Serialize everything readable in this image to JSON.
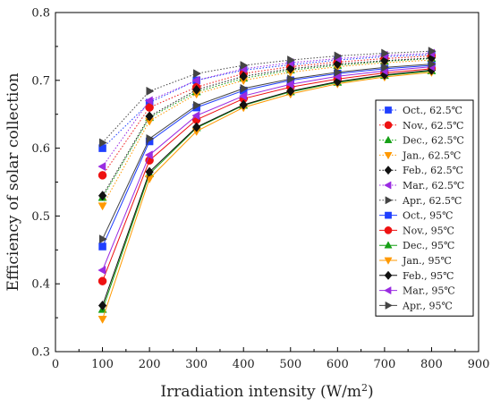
{
  "chart_data": {
    "type": "line",
    "xlabel": "Irradiation intensity (W/m",
    "xlabel_sup": "2",
    "xlabel_end": ")",
    "ylabel": "Efficiency of solar collection",
    "xlim": [
      0,
      900
    ],
    "ylim": [
      0.3,
      0.8
    ],
    "xticks": [
      "0",
      "100",
      "200",
      "300",
      "400",
      "500",
      "600",
      "700",
      "800",
      "900"
    ],
    "yticks": [
      "0.3",
      "0.4",
      "0.5",
      "0.6",
      "0.7",
      "0.8"
    ],
    "x": [
      100,
      200,
      300,
      400,
      500,
      600,
      700,
      800
    ],
    "legend_position": "right",
    "series": [
      {
        "name": "Oct., 62.5℃",
        "color": "#1f3fff",
        "marker": "square",
        "dashed": true,
        "values": [
          0.6,
          0.667,
          0.7,
          0.715,
          0.723,
          0.73,
          0.735,
          0.738
        ]
      },
      {
        "name": "Nov., 62.5℃",
        "color": "#ee1111",
        "marker": "circle",
        "dashed": true,
        "values": [
          0.56,
          0.66,
          0.69,
          0.71,
          0.72,
          0.727,
          0.732,
          0.736
        ]
      },
      {
        "name": "Dec., 62.5℃",
        "color": "#16a016",
        "marker": "triangle-up",
        "dashed": true,
        "values": [
          0.527,
          0.645,
          0.683,
          0.703,
          0.715,
          0.722,
          0.728,
          0.732
        ]
      },
      {
        "name": "Jan., 62.5℃",
        "color": "#ff9900",
        "marker": "triangle-down",
        "dashed": true,
        "values": [
          0.515,
          0.64,
          0.68,
          0.7,
          0.712,
          0.72,
          0.726,
          0.73
        ]
      },
      {
        "name": "Feb., 62.5℃",
        "color": "#111111",
        "marker": "diamond",
        "dashed": true,
        "values": [
          0.53,
          0.647,
          0.686,
          0.706,
          0.717,
          0.724,
          0.729,
          0.733
        ]
      },
      {
        "name": "Mar., 62.5℃",
        "color": "#9a2be2",
        "marker": "triangle-left",
        "dashed": true,
        "values": [
          0.573,
          0.67,
          0.7,
          0.717,
          0.726,
          0.732,
          0.737,
          0.74
        ]
      },
      {
        "name": "Apr., 62.5℃",
        "color": "#444444",
        "marker": "triangle-right",
        "dashed": true,
        "values": [
          0.608,
          0.684,
          0.71,
          0.722,
          0.73,
          0.736,
          0.74,
          0.743
        ]
      },
      {
        "name": "Oct., 95℃",
        "color": "#1f3fff",
        "marker": "square",
        "dashed": false,
        "values": [
          0.455,
          0.61,
          0.66,
          0.685,
          0.7,
          0.71,
          0.717,
          0.722
        ]
      },
      {
        "name": "Nov., 95℃",
        "color": "#ee1111",
        "marker": "circle",
        "dashed": false,
        "values": [
          0.404,
          0.582,
          0.642,
          0.673,
          0.69,
          0.702,
          0.711,
          0.717
        ]
      },
      {
        "name": "Dec., 95℃",
        "color": "#16a016",
        "marker": "triangle-up",
        "dashed": false,
        "values": [
          0.362,
          0.562,
          0.63,
          0.663,
          0.683,
          0.697,
          0.707,
          0.714
        ]
      },
      {
        "name": "Jan., 95℃",
        "color": "#ff9900",
        "marker": "triangle-down",
        "dashed": false,
        "values": [
          0.348,
          0.555,
          0.625,
          0.66,
          0.68,
          0.695,
          0.705,
          0.712
        ]
      },
      {
        "name": "Feb., 95℃",
        "color": "#111111",
        "marker": "diamond",
        "dashed": false,
        "values": [
          0.368,
          0.565,
          0.631,
          0.664,
          0.684,
          0.698,
          0.708,
          0.715
        ]
      },
      {
        "name": "Mar., 95℃",
        "color": "#9a2be2",
        "marker": "triangle-left",
        "dashed": false,
        "values": [
          0.42,
          0.59,
          0.648,
          0.677,
          0.694,
          0.706,
          0.714,
          0.72
        ]
      },
      {
        "name": "Apr., 95℃",
        "color": "#444444",
        "marker": "triangle-right",
        "dashed": false,
        "values": [
          0.466,
          0.614,
          0.663,
          0.688,
          0.702,
          0.712,
          0.719,
          0.724
        ]
      }
    ]
  }
}
